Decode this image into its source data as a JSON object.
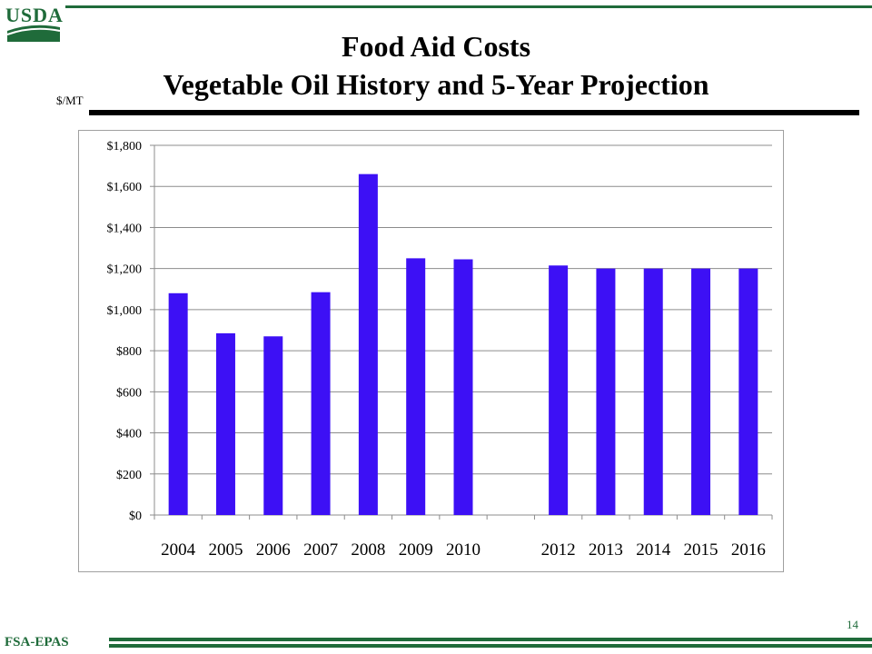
{
  "header": {
    "logo_text": "USDA",
    "title_line1": "Food Aid Costs",
    "title_line2": "Vegetable Oil History and 5-Year Projection",
    "unit_label": "$/MT"
  },
  "footer": {
    "label": "FSA-EPAS",
    "page_number": "14"
  },
  "colors": {
    "bar": "#3d10f5",
    "brand_green": "#1f6b3a",
    "grid": "#8c8c8c"
  },
  "chart_data": {
    "type": "bar",
    "title": "",
    "xlabel": "",
    "ylabel": "",
    "categories": [
      "2004",
      "2005",
      "2006",
      "2007",
      "2008",
      "2009",
      "2010",
      "",
      "2012",
      "2013",
      "2014",
      "2015",
      "2016"
    ],
    "values": [
      1080,
      885,
      870,
      1085,
      1660,
      1250,
      1245,
      null,
      1215,
      1200,
      1200,
      1200,
      1200
    ],
    "ylim": [
      0,
      1800
    ],
    "yticks": [
      0,
      200,
      400,
      600,
      800,
      1000,
      1200,
      1400,
      1600,
      1800
    ],
    "ytick_labels": [
      "$0",
      "$200",
      "$400",
      "$600",
      "$800",
      "$1,000",
      "$1,200",
      "$1,400",
      "$1,600",
      "$1,800"
    ],
    "grid": true,
    "legend": "none"
  }
}
